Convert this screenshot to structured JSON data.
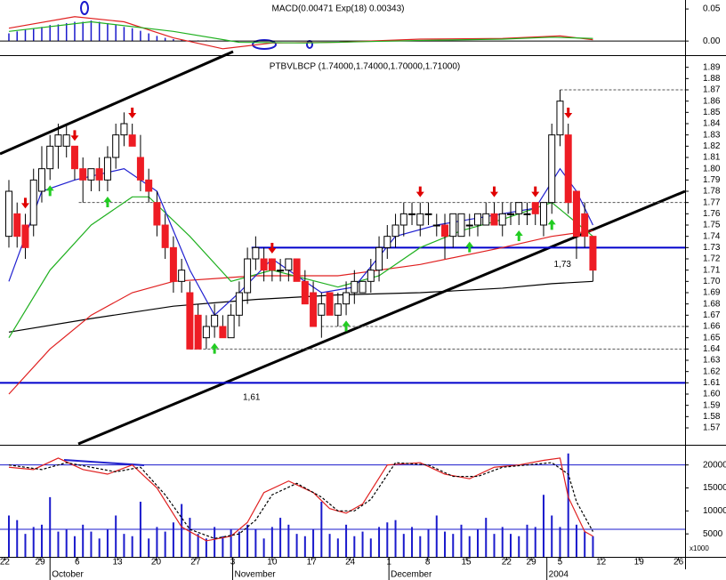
{
  "chart_data": {
    "type": "candlestick",
    "title": "PTBVLBCP (1.74000,1.74000,1.70000,1.71000)",
    "macd_title": "MACD(0.00471 Exp(18) 0.00343)",
    "up_color": "#ffffff",
    "down_color": "#ee1c24",
    "xlim": [
      -1.08,
      82.2
    ],
    "xticks": [
      {
        "value": -0.5,
        "label": "22"
      },
      {
        "value": 3.8,
        "label": "29"
      },
      {
        "value": 8.3,
        "label": "6"
      },
      {
        "value": 13.2,
        "label": "13"
      },
      {
        "value": 17.9,
        "label": "20"
      },
      {
        "value": 22.7,
        "label": "27"
      },
      {
        "value": 27.2,
        "label": "3"
      },
      {
        "value": 32,
        "label": "10"
      },
      {
        "value": 36.8,
        "label": "17"
      },
      {
        "value": 41.5,
        "label": "24"
      },
      {
        "value": 46.2,
        "label": "1"
      },
      {
        "value": 50.9,
        "label": "8"
      },
      {
        "value": 55.6,
        "label": "15"
      },
      {
        "value": 60.5,
        "label": "22"
      },
      {
        "value": 63.5,
        "label": "29"
      },
      {
        "value": 67,
        "label": "5"
      },
      {
        "value": 72,
        "label": "12"
      },
      {
        "value": 76.6,
        "label": "19"
      },
      {
        "value": 81.4,
        "label": "26"
      }
    ],
    "months": [
      {
        "value": 5,
        "label": "October"
      },
      {
        "value": 27.2,
        "label": "November"
      },
      {
        "value": 46.2,
        "label": "December"
      },
      {
        "value": 65.4,
        "label": "2004"
      }
    ],
    "ylim": [
      1.555,
      1.9
    ],
    "yticks": [
      1.57,
      1.58,
      1.59,
      {
        "value": 1.6,
        "label": "1.60"
      },
      1.61,
      1.62,
      1.63,
      1.64,
      1.65,
      1.66,
      1.67,
      1.68,
      1.69,
      {
        "value": 1.7,
        "label": "1.70"
      },
      1.71,
      1.72,
      1.73,
      1.74,
      1.75,
      1.76,
      1.77,
      1.78,
      1.79,
      {
        "value": 1.8,
        "label": "1.80"
      },
      1.81,
      1.82,
      1.83,
      1.84,
      1.85,
      1.86,
      1.87,
      1.88,
      1.89
    ],
    "open": [
      1.74,
      1.76,
      1.75,
      1.75,
      1.78,
      1.8,
      1.82,
      1.82,
      1.82,
      1.8,
      1.79,
      1.8,
      1.79,
      1.81,
      1.83,
      1.83,
      1.81,
      1.79,
      1.77,
      1.75,
      1.73,
      1.7,
      1.69,
      1.67,
      1.65,
      1.66,
      1.66,
      1.65,
      1.67,
      1.69,
      1.72,
      1.72,
      1.72,
      1.71,
      1.71,
      1.72,
      1.7,
      1.69,
      1.67,
      1.69,
      1.67,
      1.68,
      1.69,
      1.69,
      1.7,
      1.71,
      1.73,
      1.74,
      1.75,
      1.76,
      1.75,
      1.76,
      1.75,
      1.75,
      1.74,
      1.74,
      1.75,
      1.75,
      1.75,
      1.76,
      1.75,
      1.76,
      1.76,
      1.76,
      1.77,
      1.75,
      1.77,
      1.83,
      1.83,
      1.78,
      1.76,
      1.74
    ],
    "high": [
      1.79,
      1.77,
      1.76,
      1.8,
      1.82,
      1.83,
      1.84,
      1.84,
      1.82,
      1.81,
      1.8,
      1.81,
      1.82,
      1.84,
      1.85,
      1.84,
      1.83,
      1.8,
      1.78,
      1.76,
      1.74,
      1.72,
      1.7,
      1.68,
      1.67,
      1.68,
      1.67,
      1.68,
      1.7,
      1.73,
      1.74,
      1.73,
      1.72,
      1.72,
      1.72,
      1.72,
      1.71,
      1.7,
      1.69,
      1.69,
      1.69,
      1.7,
      1.71,
      1.7,
      1.72,
      1.74,
      1.75,
      1.76,
      1.77,
      1.77,
      1.77,
      1.77,
      1.76,
      1.76,
      1.76,
      1.76,
      1.76,
      1.76,
      1.77,
      1.77,
      1.77,
      1.77,
      1.77,
      1.77,
      1.77,
      1.77,
      1.84,
      1.87,
      1.84,
      1.78,
      1.77,
      1.74
    ],
    "low": [
      1.73,
      1.73,
      1.72,
      1.74,
      1.77,
      1.79,
      1.8,
      1.81,
      1.79,
      1.77,
      1.78,
      1.78,
      1.78,
      1.8,
      1.82,
      1.82,
      1.78,
      1.77,
      1.74,
      1.72,
      1.69,
      1.69,
      1.64,
      1.64,
      1.64,
      1.65,
      1.65,
      1.65,
      1.66,
      1.68,
      1.71,
      1.7,
      1.7,
      1.7,
      1.7,
      1.7,
      1.68,
      1.66,
      1.65,
      1.67,
      1.66,
      1.67,
      1.68,
      1.69,
      1.69,
      1.7,
      1.72,
      1.73,
      1.74,
      1.75,
      1.74,
      1.75,
      1.74,
      1.72,
      1.73,
      1.74,
      1.74,
      1.74,
      1.75,
      1.75,
      1.74,
      1.75,
      1.75,
      1.75,
      1.75,
      1.74,
      1.76,
      1.82,
      1.76,
      1.72,
      1.73,
      1.7
    ],
    "close": [
      1.78,
      1.74,
      1.73,
      1.79,
      1.8,
      1.82,
      1.83,
      1.83,
      1.8,
      1.79,
      1.8,
      1.79,
      1.81,
      1.83,
      1.84,
      1.82,
      1.79,
      1.78,
      1.75,
      1.73,
      1.7,
      1.71,
      1.64,
      1.64,
      1.66,
      1.67,
      1.65,
      1.67,
      1.69,
      1.72,
      1.73,
      1.71,
      1.71,
      1.71,
      1.72,
      1.7,
      1.68,
      1.66,
      1.68,
      1.67,
      1.68,
      1.69,
      1.7,
      1.7,
      1.71,
      1.73,
      1.74,
      1.75,
      1.76,
      1.76,
      1.76,
      1.76,
      1.75,
      1.74,
      1.76,
      1.76,
      1.75,
      1.76,
      1.76,
      1.75,
      1.76,
      1.76,
      1.77,
      1.76,
      1.76,
      1.77,
      1.83,
      1.86,
      1.77,
      1.74,
      1.74,
      1.71
    ],
    "sell_signals": [
      2,
      8,
      15,
      32,
      50,
      59,
      64,
      68
    ],
    "buy_signals": [
      5,
      12,
      25,
      41,
      56,
      62,
      66
    ],
    "moving_averages": [
      {
        "color": "#000000",
        "x": [
          0,
          10,
          20,
          30,
          40,
          50,
          60,
          66,
          71
        ],
        "values": [
          1.655,
          1.667,
          1.678,
          1.684,
          1.688,
          1.69,
          1.694,
          1.698,
          1.7
        ]
      },
      {
        "color": "#e02020",
        "x": [
          0,
          5,
          10,
          15,
          20,
          30,
          40,
          50,
          60,
          66,
          71
        ],
        "values": [
          1.6,
          1.64,
          1.67,
          1.69,
          1.7,
          1.705,
          1.705,
          1.715,
          1.73,
          1.74,
          1.745
        ]
      },
      {
        "color": "#20b020",
        "x": [
          0,
          5,
          10,
          15,
          17,
          22,
          27,
          32,
          40,
          45,
          50,
          55,
          60,
          66,
          71
        ],
        "values": [
          1.65,
          1.71,
          1.75,
          1.775,
          1.775,
          1.74,
          1.7,
          1.71,
          1.695,
          1.705,
          1.73,
          1.745,
          1.755,
          1.77,
          1.74
        ]
      },
      {
        "color": "#2020d0",
        "x": [
          0,
          4,
          8,
          14,
          18,
          22,
          25,
          28,
          32,
          38,
          42,
          47,
          52,
          60,
          64,
          67,
          69,
          71
        ],
        "values": [
          1.7,
          1.78,
          1.79,
          1.8,
          1.78,
          1.71,
          1.67,
          1.69,
          1.72,
          1.69,
          1.695,
          1.74,
          1.75,
          1.76,
          1.765,
          1.8,
          1.78,
          1.75
        ]
      }
    ],
    "hlines": [
      {
        "value": 1.73,
        "start": 29.5,
        "color": "#0000cc",
        "dashed": false
      },
      {
        "value": 1.61,
        "start": -1.08,
        "color": "#0000cc",
        "dashed": false
      },
      {
        "value": 1.87,
        "start": 67,
        "color": "#555555",
        "dashed": true
      },
      {
        "value": 1.77,
        "start": 8.5,
        "color": "#555555",
        "dashed": true
      },
      {
        "value": 1.66,
        "start": 38,
        "color": "#555555",
        "dashed": true
      },
      {
        "value": 1.64,
        "start": 22,
        "color": "#555555",
        "dashed": true
      }
    ],
    "annotations": [
      {
        "label": "1,61",
        "x": 29.5,
        "value": 1.605
      },
      {
        "label": "1,73",
        "x": 67.3,
        "value": 1.723
      }
    ],
    "macd": {
      "ylim": [
        -0.022,
        0.064
      ],
      "yticks": [
        0.05,
        {
          "value": 0,
          "label": "0.00"
        }
      ],
      "histogram": [
        0.012,
        0.015,
        0.018,
        0.02,
        0.022,
        0.025,
        0.026,
        0.028,
        0.03,
        0.03,
        0.032,
        0.03,
        0.028,
        0.025,
        0.022,
        0.02,
        0.016,
        0.012,
        0.008,
        0.005,
        0.003,
        0.002,
        0.001,
        0.001,
        0.001
      ],
      "lines": [
        {
          "color": "#e02020",
          "x": [
            0,
            8,
            14,
            20,
            26,
            32,
            40,
            50,
            60,
            67,
            71
          ],
          "values": [
            0.02,
            0.038,
            0.03,
            0.005,
            -0.012,
            -0.003,
            -0.002,
            0.003,
            0.004,
            0.008,
            0.002
          ]
        },
        {
          "color": "#20b020",
          "x": [
            0,
            10,
            20,
            28,
            36,
            50,
            60,
            66,
            71
          ],
          "values": [
            0.015,
            0.03,
            0.015,
            -0.002,
            -0.003,
            0.001,
            0.003,
            0.006,
            0.004
          ]
        }
      ]
    },
    "lower": {
      "ylim": [
        0,
        24000
      ],
      "yticks": [
        5000,
        10000,
        15000,
        20000
      ],
      "unit_label": "x1000",
      "volume_color": "#1a1acc",
      "volume": [
        9000,
        8000,
        5000,
        6500,
        7000,
        13000,
        5500,
        6000,
        4500,
        7000,
        5500,
        4000,
        6000,
        9000,
        5000,
        4500,
        12000,
        4000,
        6500,
        5500,
        7500,
        11500,
        8500,
        5000,
        4000,
        6500,
        4500,
        6000,
        5500,
        7000,
        6000,
        4000,
        6500,
        8500,
        7000,
        5000,
        4500,
        6000,
        12000,
        5000,
        4000,
        7000,
        4500,
        5500,
        4000,
        6500,
        7500,
        8000,
        5000,
        6500,
        4500,
        6000,
        9000,
        5500,
        5000,
        7000,
        4500,
        6000,
        8500,
        5000,
        6500,
        5000,
        4500,
        7000,
        6500,
        13500,
        9000,
        6500,
        22500,
        7000,
        5500,
        4500
      ],
      "levels": [
        20000,
        6000
      ],
      "stoch": [
        {
          "color": "#e02020",
          "dashed": false,
          "x": [
            0,
            3,
            6,
            9,
            12,
            15,
            18,
            21,
            24,
            27,
            29,
            31,
            34,
            37,
            39,
            41,
            43,
            46,
            50,
            53,
            56,
            59,
            62,
            65,
            67,
            68,
            70,
            71
          ],
          "values": [
            19500,
            19000,
            21500,
            19000,
            18000,
            20000,
            15000,
            6500,
            3500,
            4500,
            7500,
            14000,
            16500,
            14000,
            10500,
            9500,
            11500,
            20000,
            20500,
            18000,
            17000,
            19500,
            20000,
            21000,
            21500,
            13000,
            5500,
            4500
          ]
        },
        {
          "color": "#000000",
          "dashed": true,
          "x": [
            0,
            4,
            7,
            10,
            13,
            16,
            19,
            22,
            25,
            28,
            30,
            32,
            35,
            38,
            40,
            42,
            44,
            47,
            51,
            54,
            57,
            60,
            63,
            66,
            68,
            69,
            71
          ],
          "values": [
            20000,
            19000,
            20500,
            19500,
            18500,
            19500,
            13500,
            6000,
            4000,
            5000,
            8000,
            13500,
            16000,
            13000,
            10000,
            10000,
            12500,
            20500,
            20000,
            17500,
            17500,
            19500,
            20000,
            20500,
            18000,
            12000,
            5500
          ]
        }
      ]
    }
  }
}
